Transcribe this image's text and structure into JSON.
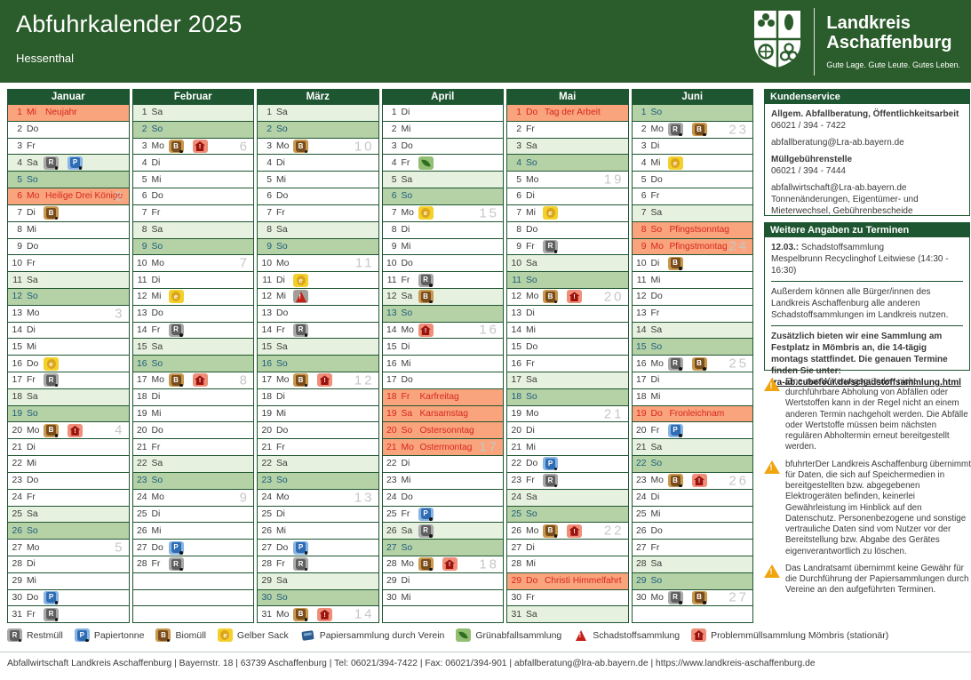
{
  "header": {
    "title": "Abfuhrkalender 2025",
    "subtitle": "Hessenthal",
    "brand_line1": "Landkreis",
    "brand_line2": "Aschaffenburg",
    "brand_tagline": "Gute Lage. Gute Leute. Gutes Leben."
  },
  "colors": {
    "header_green": "#2b5c2b",
    "border_green": "#1e5631",
    "holiday_bg": "#f9a47c",
    "holiday_text": "#d7261f",
    "sunday_bg": "#b5d1a6",
    "sunday_text": "#1d5d7d",
    "saturday_bg": "#e7f1df",
    "week_number_grey": "#c7c7c7",
    "warning_orange": "#efa50f"
  },
  "calendar": {
    "icon_types": {
      "R": "Restmüll",
      "P": "Papiertonne",
      "B": "Biomüll",
      "G": "Gelber Sack",
      "V": "Papiersammlung durch Verein",
      "GA": "Grünabfallsammlung",
      "S": "Schadstoffsammlung",
      "PM": "Problemmüllsammlung Mömbris (stationär)"
    },
    "months": [
      {
        "name": "Januar",
        "days": [
          {
            "d": 1,
            "w": "Mi",
            "h": "Neujahr"
          },
          {
            "d": 2,
            "w": "Do"
          },
          {
            "d": 3,
            "w": "Fr"
          },
          {
            "d": 4,
            "w": "Sa",
            "i": [
              "R",
              "P"
            ]
          },
          {
            "d": 5,
            "w": "So"
          },
          {
            "d": 6,
            "w": "Mo",
            "h": "Heilige Drei Könige",
            "k": 2
          },
          {
            "d": 7,
            "w": "Di",
            "i": [
              "B"
            ]
          },
          {
            "d": 8,
            "w": "Mi"
          },
          {
            "d": 9,
            "w": "Do"
          },
          {
            "d": 10,
            "w": "Fr"
          },
          {
            "d": 11,
            "w": "Sa"
          },
          {
            "d": 12,
            "w": "So"
          },
          {
            "d": 13,
            "w": "Mo",
            "k": 3
          },
          {
            "d": 14,
            "w": "Di"
          },
          {
            "d": 15,
            "w": "Mi"
          },
          {
            "d": 16,
            "w": "Do",
            "i": [
              "G"
            ]
          },
          {
            "d": 17,
            "w": "Fr",
            "i": [
              "R"
            ]
          },
          {
            "d": 18,
            "w": "Sa"
          },
          {
            "d": 19,
            "w": "So"
          },
          {
            "d": 20,
            "w": "Mo",
            "i": [
              "B",
              "PM"
            ],
            "k": 4
          },
          {
            "d": 21,
            "w": "Di"
          },
          {
            "d": 22,
            "w": "Mi"
          },
          {
            "d": 23,
            "w": "Do"
          },
          {
            "d": 24,
            "w": "Fr"
          },
          {
            "d": 25,
            "w": "Sa"
          },
          {
            "d": 26,
            "w": "So"
          },
          {
            "d": 27,
            "w": "Mo",
            "k": 5
          },
          {
            "d": 28,
            "w": "Di"
          },
          {
            "d": 29,
            "w": "Mi"
          },
          {
            "d": 30,
            "w": "Do",
            "i": [
              "P"
            ]
          },
          {
            "d": 31,
            "w": "Fr",
            "i": [
              "R"
            ]
          }
        ]
      },
      {
        "name": "Februar",
        "days": [
          {
            "d": 1,
            "w": "Sa"
          },
          {
            "d": 2,
            "w": "So"
          },
          {
            "d": 3,
            "w": "Mo",
            "i": [
              "B",
              "PM"
            ],
            "k": 6
          },
          {
            "d": 4,
            "w": "Di"
          },
          {
            "d": 5,
            "w": "Mi"
          },
          {
            "d": 6,
            "w": "Do"
          },
          {
            "d": 7,
            "w": "Fr"
          },
          {
            "d": 8,
            "w": "Sa"
          },
          {
            "d": 9,
            "w": "So"
          },
          {
            "d": 10,
            "w": "Mo",
            "k": 7
          },
          {
            "d": 11,
            "w": "Di"
          },
          {
            "d": 12,
            "w": "Mi",
            "i": [
              "G"
            ]
          },
          {
            "d": 13,
            "w": "Do"
          },
          {
            "d": 14,
            "w": "Fr",
            "i": [
              "R"
            ]
          },
          {
            "d": 15,
            "w": "Sa"
          },
          {
            "d": 16,
            "w": "So"
          },
          {
            "d": 17,
            "w": "Mo",
            "i": [
              "B",
              "PM"
            ],
            "k": 8
          },
          {
            "d": 18,
            "w": "Di"
          },
          {
            "d": 19,
            "w": "Mi"
          },
          {
            "d": 20,
            "w": "Do"
          },
          {
            "d": 21,
            "w": "Fr"
          },
          {
            "d": 22,
            "w": "Sa"
          },
          {
            "d": 23,
            "w": "So"
          },
          {
            "d": 24,
            "w": "Mo",
            "k": 9
          },
          {
            "d": 25,
            "w": "Di"
          },
          {
            "d": 26,
            "w": "Mi"
          },
          {
            "d": 27,
            "w": "Do",
            "i": [
              "P"
            ]
          },
          {
            "d": 28,
            "w": "Fr",
            "i": [
              "R"
            ]
          }
        ]
      },
      {
        "name": "März",
        "days": [
          {
            "d": 1,
            "w": "Sa"
          },
          {
            "d": 2,
            "w": "So"
          },
          {
            "d": 3,
            "w": "Mo",
            "i": [
              "B"
            ],
            "k": 10
          },
          {
            "d": 4,
            "w": "Di"
          },
          {
            "d": 5,
            "w": "Mi"
          },
          {
            "d": 6,
            "w": "Do"
          },
          {
            "d": 7,
            "w": "Fr"
          },
          {
            "d": 8,
            "w": "Sa"
          },
          {
            "d": 9,
            "w": "So"
          },
          {
            "d": 10,
            "w": "Mo",
            "k": 11
          },
          {
            "d": 11,
            "w": "Di",
            "i": [
              "G"
            ]
          },
          {
            "d": 12,
            "w": "Mi",
            "i": [
              "S"
            ]
          },
          {
            "d": 13,
            "w": "Do"
          },
          {
            "d": 14,
            "w": "Fr",
            "i": [
              "R"
            ]
          },
          {
            "d": 15,
            "w": "Sa"
          },
          {
            "d": 16,
            "w": "So"
          },
          {
            "d": 17,
            "w": "Mo",
            "i": [
              "B",
              "PM"
            ],
            "k": 12
          },
          {
            "d": 18,
            "w": "Di"
          },
          {
            "d": 19,
            "w": "Mi"
          },
          {
            "d": 20,
            "w": "Do"
          },
          {
            "d": 21,
            "w": "Fr"
          },
          {
            "d": 22,
            "w": "Sa"
          },
          {
            "d": 23,
            "w": "So"
          },
          {
            "d": 24,
            "w": "Mo",
            "k": 13
          },
          {
            "d": 25,
            "w": "Di"
          },
          {
            "d": 26,
            "w": "Mi"
          },
          {
            "d": 27,
            "w": "Do",
            "i": [
              "P"
            ]
          },
          {
            "d": 28,
            "w": "Fr",
            "i": [
              "R"
            ]
          },
          {
            "d": 29,
            "w": "Sa"
          },
          {
            "d": 30,
            "w": "So"
          },
          {
            "d": 31,
            "w": "Mo",
            "i": [
              "B",
              "PM"
            ],
            "k": 14
          }
        ]
      },
      {
        "name": "April",
        "days": [
          {
            "d": 1,
            "w": "Di"
          },
          {
            "d": 2,
            "w": "Mi"
          },
          {
            "d": 3,
            "w": "Do"
          },
          {
            "d": 4,
            "w": "Fr",
            "i": [
              "GA"
            ]
          },
          {
            "d": 5,
            "w": "Sa"
          },
          {
            "d": 6,
            "w": "So"
          },
          {
            "d": 7,
            "w": "Mo",
            "i": [
              "G"
            ],
            "k": 15
          },
          {
            "d": 8,
            "w": "Di"
          },
          {
            "d": 9,
            "w": "Mi"
          },
          {
            "d": 10,
            "w": "Do"
          },
          {
            "d": 11,
            "w": "Fr",
            "i": [
              "R"
            ]
          },
          {
            "d": 12,
            "w": "Sa",
            "i": [
              "B"
            ]
          },
          {
            "d": 13,
            "w": "So"
          },
          {
            "d": 14,
            "w": "Mo",
            "i": [
              "PM"
            ],
            "k": 16
          },
          {
            "d": 15,
            "w": "Di"
          },
          {
            "d": 16,
            "w": "Mi"
          },
          {
            "d": 17,
            "w": "Do"
          },
          {
            "d": 18,
            "w": "Fr",
            "h": "Karfreitag"
          },
          {
            "d": 19,
            "w": "Sa",
            "h": "Karsamstag"
          },
          {
            "d": 20,
            "w": "So",
            "h": "Ostersonntag"
          },
          {
            "d": 21,
            "w": "Mo",
            "h": "Ostermontag",
            "k": 17
          },
          {
            "d": 22,
            "w": "Di"
          },
          {
            "d": 23,
            "w": "Mi"
          },
          {
            "d": 24,
            "w": "Do"
          },
          {
            "d": 25,
            "w": "Fr",
            "i": [
              "P"
            ]
          },
          {
            "d": 26,
            "w": "Sa",
            "i": [
              "R"
            ]
          },
          {
            "d": 27,
            "w": "So"
          },
          {
            "d": 28,
            "w": "Mo",
            "i": [
              "B",
              "PM"
            ],
            "k": 18
          },
          {
            "d": 29,
            "w": "Di"
          },
          {
            "d": 30,
            "w": "Mi"
          }
        ]
      },
      {
        "name": "Mai",
        "days": [
          {
            "d": 1,
            "w": "Do",
            "h": "Tag der Arbeit"
          },
          {
            "d": 2,
            "w": "Fr"
          },
          {
            "d": 3,
            "w": "Sa"
          },
          {
            "d": 4,
            "w": "So"
          },
          {
            "d": 5,
            "w": "Mo",
            "k": 19
          },
          {
            "d": 6,
            "w": "Di"
          },
          {
            "d": 7,
            "w": "Mi",
            "i": [
              "G"
            ]
          },
          {
            "d": 8,
            "w": "Do"
          },
          {
            "d": 9,
            "w": "Fr",
            "i": [
              "R"
            ]
          },
          {
            "d": 10,
            "w": "Sa"
          },
          {
            "d": 11,
            "w": "So"
          },
          {
            "d": 12,
            "w": "Mo",
            "i": [
              "B",
              "PM"
            ],
            "k": 20
          },
          {
            "d": 13,
            "w": "Di"
          },
          {
            "d": 14,
            "w": "Mi"
          },
          {
            "d": 15,
            "w": "Do"
          },
          {
            "d": 16,
            "w": "Fr"
          },
          {
            "d": 17,
            "w": "Sa"
          },
          {
            "d": 18,
            "w": "So"
          },
          {
            "d": 19,
            "w": "Mo",
            "k": 21
          },
          {
            "d": 20,
            "w": "Di"
          },
          {
            "d": 21,
            "w": "Mi"
          },
          {
            "d": 22,
            "w": "Do",
            "i": [
              "P"
            ]
          },
          {
            "d": 23,
            "w": "Fr",
            "i": [
              "R"
            ]
          },
          {
            "d": 24,
            "w": "Sa"
          },
          {
            "d": 25,
            "w": "So"
          },
          {
            "d": 26,
            "w": "Mo",
            "i": [
              "B",
              "PM"
            ],
            "k": 22
          },
          {
            "d": 27,
            "w": "Di"
          },
          {
            "d": 28,
            "w": "Mi"
          },
          {
            "d": 29,
            "w": "Do",
            "h": "Christi Himmelfahrt"
          },
          {
            "d": 30,
            "w": "Fr"
          },
          {
            "d": 31,
            "w": "Sa"
          }
        ]
      },
      {
        "name": "Juni",
        "days": [
          {
            "d": 1,
            "w": "So"
          },
          {
            "d": 2,
            "w": "Mo",
            "i": [
              "R",
              "B"
            ],
            "k": 23
          },
          {
            "d": 3,
            "w": "Di"
          },
          {
            "d": 4,
            "w": "Mi",
            "i": [
              "G"
            ]
          },
          {
            "d": 5,
            "w": "Do"
          },
          {
            "d": 6,
            "w": "Fr"
          },
          {
            "d": 7,
            "w": "Sa"
          },
          {
            "d": 8,
            "w": "So",
            "h": "Pfingstsonntag"
          },
          {
            "d": 9,
            "w": "Mo",
            "h": "Pfingstmontag",
            "k": 24
          },
          {
            "d": 10,
            "w": "Di",
            "i": [
              "B"
            ]
          },
          {
            "d": 11,
            "w": "Mi"
          },
          {
            "d": 12,
            "w": "Do"
          },
          {
            "d": 13,
            "w": "Fr"
          },
          {
            "d": 14,
            "w": "Sa"
          },
          {
            "d": 15,
            "w": "So"
          },
          {
            "d": 16,
            "w": "Mo",
            "i": [
              "R",
              "B"
            ],
            "k": 25
          },
          {
            "d": 17,
            "w": "Di"
          },
          {
            "d": 18,
            "w": "Mi"
          },
          {
            "d": 19,
            "w": "Do",
            "h": "Fronleichnam"
          },
          {
            "d": 20,
            "w": "Fr",
            "i": [
              "P"
            ]
          },
          {
            "d": 21,
            "w": "Sa"
          },
          {
            "d": 22,
            "w": "So"
          },
          {
            "d": 23,
            "w": "Mo",
            "i": [
              "B",
              "PM"
            ],
            "k": 26
          },
          {
            "d": 24,
            "w": "Di"
          },
          {
            "d": 25,
            "w": "Mi"
          },
          {
            "d": 26,
            "w": "Do"
          },
          {
            "d": 27,
            "w": "Fr"
          },
          {
            "d": 28,
            "w": "Sa"
          },
          {
            "d": 29,
            "w": "So"
          },
          {
            "d": 30,
            "w": "Mo",
            "i": [
              "R",
              "B"
            ],
            "k": 27
          }
        ]
      }
    ]
  },
  "sidebar": {
    "kundenservice": {
      "title": "Kundenservice",
      "block1_heading": "Allgem. Abfallberatung, Öffentlichkeitsarbeit",
      "block1_phone": "06021 / 394 - 7422",
      "block1_email": "abfallberatung@Lra-ab.bayern.de",
      "block2_heading": "Müllgebührenstelle",
      "block2_phone": "06021 / 394 - 7444",
      "block2_email": "abfallwirtschaft@Lra-ab.bayern.de",
      "block2_note": "Tonnenänderungen, Eigentümer- und Mieterwechsel, Gebührenbescheide"
    },
    "termine": {
      "title": "Weitere Angaben zu Terminen",
      "date": "12.03.:",
      "event": "Schadstoffsammlung",
      "location": "Mespelbrunn Recyclinghof Leitwiese (14:30 - 16:30)",
      "note1": "Außerdem können alle Bürger/innen des Landkreis Aschaffenburg alle anderen Schadstoffsammlungen im Landkreis nutzen.",
      "note2": "Zusätzlich bieten wir eine Sammlung am Festplatz in Mömbris an, die 14-tägig montags stattfindet. Die genauen Termine finden Sie unter:",
      "link": "lra-ab.cubefour.de/schadstoffsammlung.html"
    },
    "warnings": [
      "Eine aus Witterungsgründen nicht durchführbare Abholung von Abfällen oder Wertstoffen kann in der Regel nicht an einem anderen Termin nachgeholt werden. Die Abfälle oder Wertstoffe müssen beim nächsten regulären Abholtermin erneut bereitgestellt werden.",
      "bfuhrterDer Landkreis Aschaffenburg übernimmt für Daten, die sich auf Speichermedien in bereitgestellten bzw. abgegebenen Elektrogeräten befinden, keinerlei Gewährleistung im Hinblick auf den Datenschutz. Personenbezogene und sonstige vertrauliche Daten sind vom Nutzer vor der Bereitstellung bzw. Abgabe des Gerätes eigenverantwortlich zu löschen.",
      "Das Landratsamt übernimmt keine Gewähr für die Durchführung der Papiersammlungen durch Vereine an den aufgeführten Terminen."
    ]
  },
  "legend": {
    "items": [
      {
        "type": "R",
        "label": "Restmüll"
      },
      {
        "type": "P",
        "label": "Papiertonne"
      },
      {
        "type": "B",
        "label": "Biomüll"
      },
      {
        "type": "G",
        "label": "Gelber Sack"
      },
      {
        "type": "V",
        "label": "Papiersammlung durch Verein"
      },
      {
        "type": "GA",
        "label": "Grünabfallsammlung"
      },
      {
        "type": "S",
        "label": "Schadstoffsammlung"
      },
      {
        "type": "PM",
        "label": "Problemmüllsammlung Mömbris (stationär)"
      }
    ]
  },
  "footer": {
    "text": "Abfallwirtschaft Landkreis Aschaffenburg | Bayernstr. 18 | 63739 Aschaffenburg | Tel: 06021/394-7422 | Fax: 06021/394-901 | abfallberatung@lra-ab.bayern.de | https://www.landkreis-aschaffenburg.de"
  }
}
